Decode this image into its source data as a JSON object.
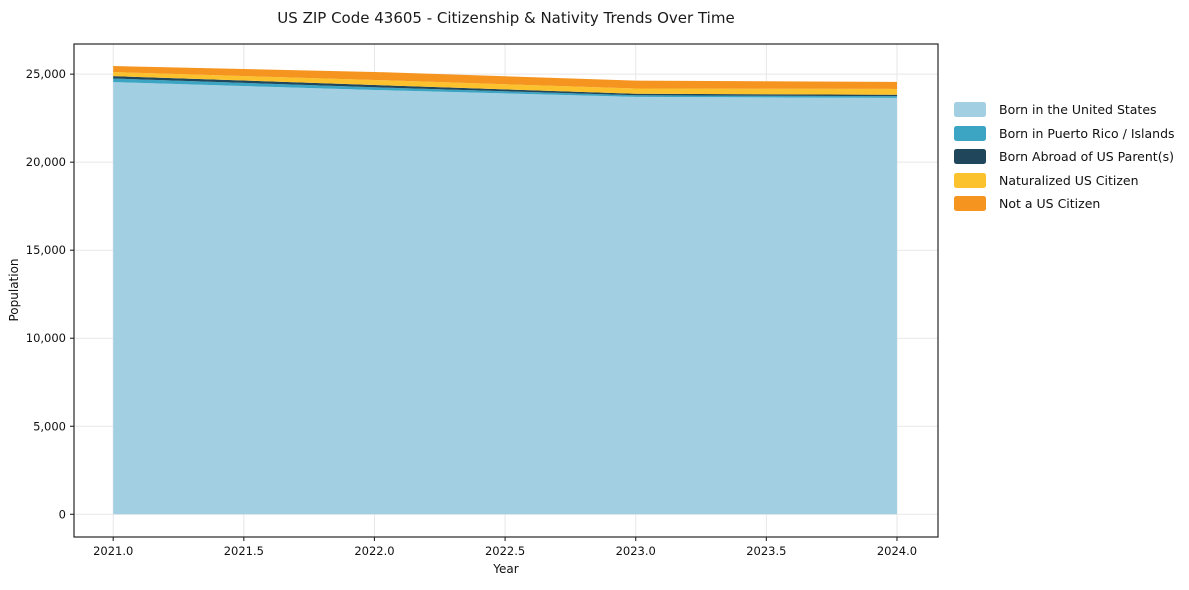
{
  "figure": {
    "title": "US ZIP Code 43605 - Citizenship & Nativity Trends Over Time",
    "xlabel": "Year",
    "ylabel": "Population"
  },
  "chart_data": {
    "type": "area",
    "stacked": true,
    "title": "US ZIP Code 43605 - Citizenship & Nativity Trends Over Time",
    "xlabel": "Year",
    "ylabel": "Population",
    "x": [
      2021,
      2022,
      2023,
      2024
    ],
    "series": [
      {
        "name": "Born in the United States",
        "color": "#a3cfe3",
        "values": [
          24550,
          24100,
          23710,
          23650
        ]
      },
      {
        "name": "Born in Puerto Rico / Islands",
        "color": "#3ca5c4",
        "values": [
          200,
          155,
          90,
          100
        ]
      },
      {
        "name": "Born Abroad of US Parent(s)",
        "color": "#1f465a",
        "values": [
          140,
          130,
          85,
          80
        ]
      },
      {
        "name": "Naturalized US Citizen",
        "color": "#fcc22e",
        "values": [
          230,
          285,
          300,
          330
        ]
      },
      {
        "name": "Not a US Citizen",
        "color": "#f5941f",
        "values": [
          340,
          455,
          450,
          400
        ]
      }
    ],
    "totals": [
      25460,
      25125,
      24635,
      24560
    ],
    "xlim": [
      2020.85,
      2024.157
    ],
    "ylim": [
      -1290,
      26713
    ],
    "xticks": [
      2021.0,
      2021.5,
      2022.0,
      2022.5,
      2023.0,
      2023.5,
      2024.0
    ],
    "xtick_labels": [
      "2021.0",
      "2021.5",
      "2022.0",
      "2022.5",
      "2023.0",
      "2023.5",
      "2024.0"
    ],
    "yticks": [
      0,
      5000,
      10000,
      15000,
      20000,
      25000
    ],
    "ytick_labels": [
      "0",
      "5,000",
      "10,000",
      "15,000",
      "20,000",
      "25,000"
    ],
    "grid": true,
    "legend_position": "outside-right",
    "colors": {
      "grid": "#e7e7e7",
      "spine": "#262626",
      "text": "#111111",
      "background": "#ffffff"
    }
  }
}
